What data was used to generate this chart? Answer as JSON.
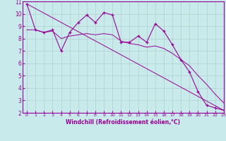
{
  "xlabel": "Windchill (Refroidissement éolien,°C)",
  "xlim": [
    -0.5,
    23
  ],
  "ylim": [
    2,
    11
  ],
  "yticks": [
    2,
    3,
    4,
    5,
    6,
    7,
    8,
    9,
    10,
    11
  ],
  "xticks": [
    0,
    1,
    2,
    3,
    4,
    5,
    6,
    7,
    8,
    9,
    10,
    11,
    12,
    13,
    14,
    15,
    16,
    17,
    18,
    19,
    20,
    21,
    22,
    23
  ],
  "bg_color": "#c8eaea",
  "line_color": "#990099",
  "grid_color": "#b0d0d0",
  "series1_x": [
    0,
    1,
    2,
    3,
    4,
    5,
    6,
    7,
    8,
    9,
    10,
    11,
    12,
    13,
    14,
    15,
    16,
    17,
    18,
    19,
    20,
    21,
    22,
    23
  ],
  "series1_y": [
    10.8,
    8.7,
    8.5,
    8.7,
    7.0,
    8.5,
    9.3,
    9.9,
    9.3,
    10.1,
    9.9,
    7.7,
    7.7,
    8.2,
    7.7,
    9.2,
    8.6,
    7.5,
    6.3,
    5.3,
    3.7,
    2.6,
    2.4,
    2.2
  ],
  "series2_x": [
    0,
    23
  ],
  "series2_y": [
    10.8,
    2.2
  ],
  "series3_x": [
    0,
    1,
    2,
    3,
    4,
    5,
    6,
    7,
    8,
    9,
    10,
    11,
    12,
    13,
    14,
    15,
    16,
    17,
    18,
    19,
    20,
    21,
    22,
    23
  ],
  "series3_y": [
    8.7,
    8.7,
    8.5,
    8.6,
    8.0,
    8.2,
    8.3,
    8.4,
    8.3,
    8.4,
    8.3,
    7.8,
    7.6,
    7.5,
    7.3,
    7.4,
    7.2,
    6.8,
    6.3,
    5.8,
    5.0,
    4.3,
    3.5,
    2.8
  ]
}
